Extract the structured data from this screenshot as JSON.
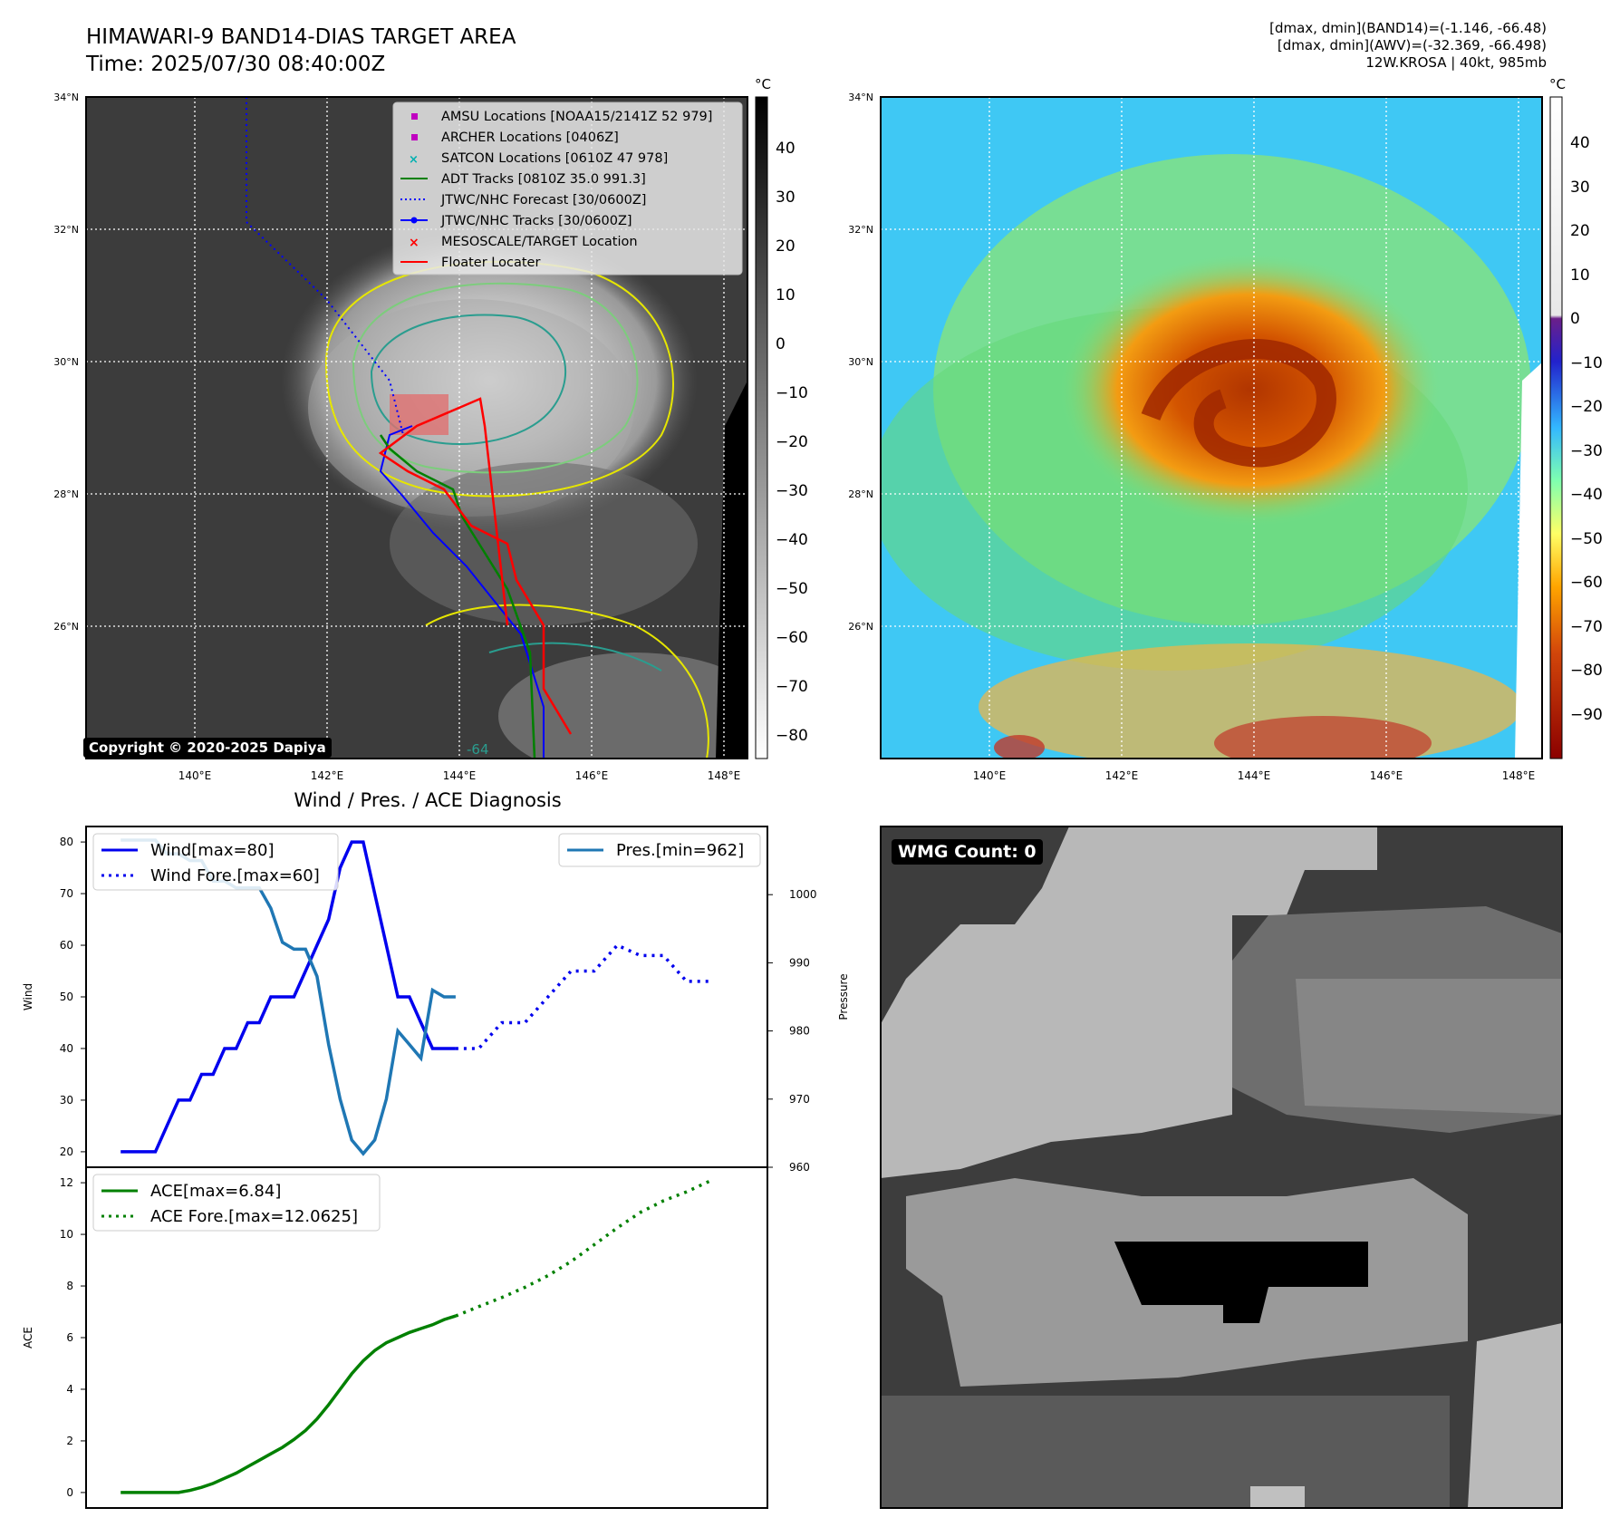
{
  "header": {
    "title": "HIMAWARI-9 BAND14-DIAS TARGET AREA",
    "time": "Time: 2025/07/30 08:40:00Z",
    "info_line1": "[dmax, dmin](BAND14)=(-1.146, -66.48)",
    "info_line2": "[dmax, dmin](AWV)=(-32.369, -66.498)",
    "info_line3": "12W.KROSA | 40kt, 985mb"
  },
  "map": {
    "lat_labels": [
      "34°N",
      "32°N",
      "30°N",
      "28°N",
      "26°N"
    ],
    "lon_labels": [
      "140°E",
      "142°E",
      "144°E",
      "146°E",
      "148°E"
    ],
    "copyright": "Copyright © 2020-2025 Dapiya",
    "contour_label": "-64",
    "legend": [
      {
        "label": "AMSU Locations [NOAA15/2141Z 52 979]",
        "color": "#c000c0",
        "marker": "square"
      },
      {
        "label": "ARCHER Locations [0406Z]",
        "color": "#c000c0",
        "marker": "square"
      },
      {
        "label": "SATCON Locations [0610Z 47 978]",
        "color": "#00b0b0",
        "marker": "x"
      },
      {
        "label": "ADT Tracks [0810Z 35.0 991.3]",
        "color": "#008000",
        "marker": "line"
      },
      {
        "label": "JTWC/NHC Forecast [30/0600Z]",
        "color": "#0000ff",
        "marker": "dotted"
      },
      {
        "label": "JTWC/NHC Tracks [30/0600Z]",
        "color": "#0000ff",
        "marker": "line-dot"
      },
      {
        "label": "MESOSCALE/TARGET Location",
        "color": "#ff0000",
        "marker": "x"
      },
      {
        "label": "Floater Locater",
        "color": "#ff0000",
        "marker": "line"
      }
    ]
  },
  "colorbar_left": {
    "unit": "°C",
    "ticks": [
      "40",
      "30",
      "20",
      "10",
      "0",
      "−10",
      "−20",
      "−30",
      "−40",
      "−50",
      "−60",
      "−70",
      "−80"
    ]
  },
  "colorbar_right": {
    "unit": "°C",
    "ticks": [
      "40",
      "30",
      "20",
      "10",
      "0",
      "−10",
      "−20",
      "−30",
      "−40",
      "−50",
      "−60",
      "−70",
      "−80",
      "−90"
    ]
  },
  "wmg": {
    "label": "WMG Count: 0"
  },
  "chart_data": [
    {
      "type": "line",
      "title": "Wind / Pres. / ACE Diagnosis",
      "ylabel": "Wind",
      "ylabel_right": "Pressure",
      "ylim": [
        17,
        83
      ],
      "ylim_right": [
        960,
        1010
      ],
      "yticks": [
        20,
        30,
        40,
        50,
        60,
        70,
        80
      ],
      "yticks_right": [
        960,
        970,
        980,
        990,
        1000
      ],
      "series": [
        {
          "name": "Wind[max=80]",
          "color": "#0000ee",
          "style": "solid",
          "x": [
            0,
            1,
            2,
            3,
            4,
            5,
            6,
            7,
            8,
            9,
            10,
            11,
            12,
            13,
            14,
            15,
            16,
            17,
            18,
            19,
            20,
            21,
            22,
            23,
            24,
            25,
            26,
            27,
            28,
            29
          ],
          "values": [
            20,
            20,
            20,
            20,
            25,
            30,
            30,
            35,
            35,
            40,
            40,
            45,
            45,
            50,
            50,
            50,
            55,
            60,
            65,
            75,
            80,
            80,
            70,
            60,
            50,
            50,
            45,
            40,
            40,
            40
          ]
        },
        {
          "name": "Wind Fore.[max=60]",
          "color": "#0000ee",
          "style": "dotted",
          "x": [
            29,
            31,
            33,
            35,
            37,
            39,
            41,
            43,
            45,
            47,
            49,
            51
          ],
          "values": [
            40,
            40,
            45,
            45,
            50,
            55,
            55,
            60,
            58,
            58,
            53,
            53
          ]
        },
        {
          "name": "Pres.[min=962]",
          "color": "#1f77b4",
          "style": "solid",
          "axis": "right",
          "x": [
            0,
            1,
            2,
            3,
            4,
            5,
            6,
            7,
            8,
            9,
            10,
            11,
            12,
            13,
            14,
            15,
            16,
            17,
            18,
            19,
            20,
            21,
            22,
            23,
            24,
            25,
            26,
            27,
            28,
            29
          ],
          "values": [
            1008,
            1008,
            1008,
            1008,
            1006,
            1006,
            1005,
            1005,
            1002,
            1002,
            1001,
            1001,
            1001,
            998,
            993,
            992,
            992,
            988,
            978,
            970,
            964,
            962,
            964,
            970,
            980,
            978,
            976,
            986,
            985,
            985
          ]
        }
      ]
    },
    {
      "type": "line",
      "ylabel": "ACE",
      "ylim": [
        -0.6,
        12.6
      ],
      "yticks": [
        0,
        2,
        4,
        6,
        8,
        10,
        12
      ],
      "series": [
        {
          "name": "ACE[max=6.84]",
          "color": "#008000",
          "style": "solid",
          "x": [
            0,
            1,
            2,
            3,
            4,
            5,
            6,
            7,
            8,
            9,
            10,
            11,
            12,
            13,
            14,
            15,
            16,
            17,
            18,
            19,
            20,
            21,
            22,
            23,
            24,
            25,
            26,
            27,
            28,
            29
          ],
          "values": [
            0,
            0,
            0,
            0,
            0,
            0,
            0.08,
            0.2,
            0.35,
            0.55,
            0.75,
            1.0,
            1.25,
            1.5,
            1.75,
            2.05,
            2.4,
            2.85,
            3.4,
            4.0,
            4.6,
            5.1,
            5.5,
            5.8,
            6.0,
            6.2,
            6.35,
            6.5,
            6.7,
            6.84
          ]
        },
        {
          "name": "ACE Fore.[max=12.0625]",
          "color": "#008000",
          "style": "dotted",
          "x": [
            29,
            31,
            33,
            35,
            37,
            39,
            41,
            43,
            45,
            47,
            49,
            51
          ],
          "values": [
            6.84,
            7.2,
            7.55,
            7.95,
            8.4,
            8.95,
            9.6,
            10.25,
            10.85,
            11.3,
            11.65,
            12.0625
          ]
        }
      ]
    }
  ]
}
